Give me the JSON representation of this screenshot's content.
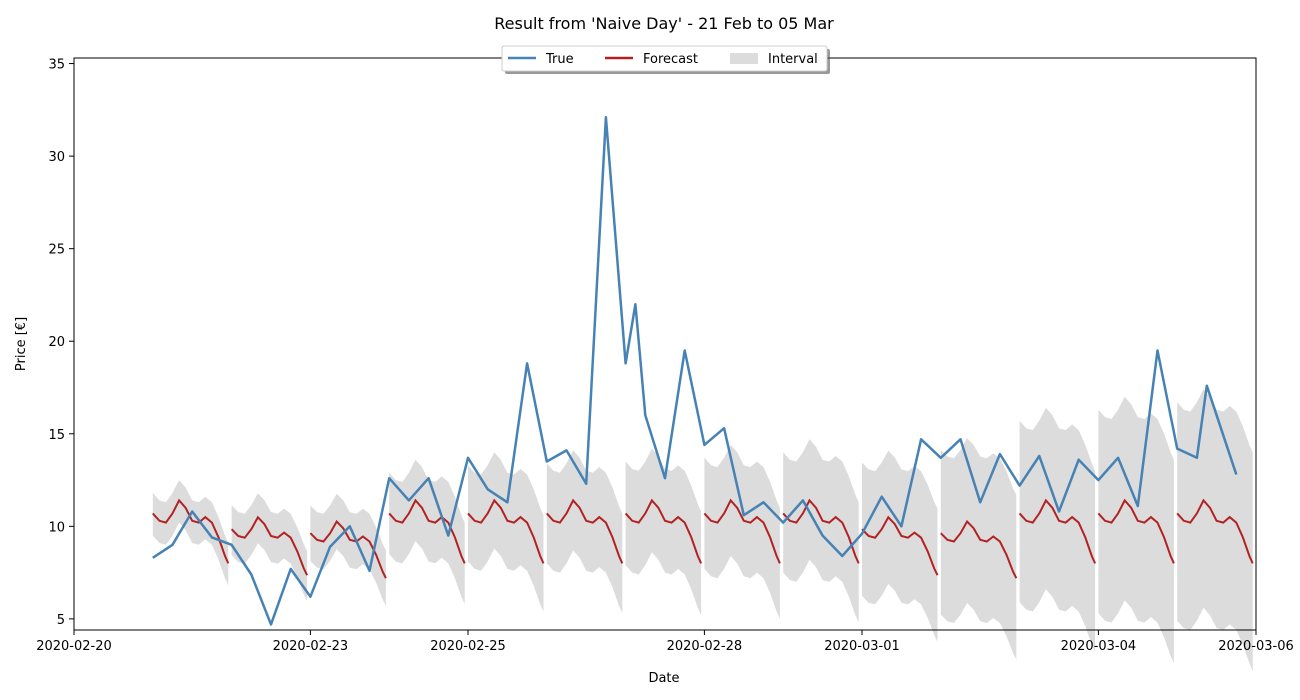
{
  "chart_data": {
    "type": "line",
    "title": "Result from 'Naive Day' - 21 Feb to 05 Mar",
    "xlabel": "Date",
    "ylabel": "Price [€]",
    "xlim": [
      "2020-02-20 00:00",
      "2020-03-06 00:00"
    ],
    "ylim": [
      4.4,
      35.3
    ],
    "x_ticks": [
      "2020-02-20",
      "2020-02-23",
      "2020-02-25",
      "2020-02-28",
      "2020-03-01",
      "2020-03-04",
      "2020-03-06"
    ],
    "y_ticks": [
      5,
      10,
      15,
      20,
      25,
      30,
      35
    ],
    "legend": {
      "placement": "top-center",
      "entries": [
        "True",
        "Forecast",
        "Interval"
      ]
    },
    "colors": {
      "true": "#4682b4",
      "forecast": "#b22222",
      "interval": "#dcdcdc"
    },
    "grid": false,
    "series": [
      {
        "name": "True",
        "points": [
          [
            "2020-02-21 00:00",
            8.3
          ],
          [
            "2020-02-21 06:00",
            9.0
          ],
          [
            "2020-02-21 12:00",
            10.8
          ],
          [
            "2020-02-21 18:00",
            9.4
          ],
          [
            "2020-02-22 00:00",
            9.0
          ],
          [
            "2020-02-22 06:00",
            7.4
          ],
          [
            "2020-02-22 12:00",
            4.7
          ],
          [
            "2020-02-22 18:00",
            7.7
          ],
          [
            "2020-02-23 00:00",
            6.2
          ],
          [
            "2020-02-23 06:00",
            8.9
          ],
          [
            "2020-02-23 12:00",
            10.0
          ],
          [
            "2020-02-23 18:00",
            7.6
          ],
          [
            "2020-02-24 00:00",
            12.6
          ],
          [
            "2020-02-24 06:00",
            11.4
          ],
          [
            "2020-02-24 12:00",
            12.6
          ],
          [
            "2020-02-24 18:00",
            9.5
          ],
          [
            "2020-02-25 00:00",
            13.7
          ],
          [
            "2020-02-25 06:00",
            12.0
          ],
          [
            "2020-02-25 12:00",
            11.3
          ],
          [
            "2020-02-25 18:00",
            18.8
          ],
          [
            "2020-02-26 00:00",
            13.5
          ],
          [
            "2020-02-26 06:00",
            14.1
          ],
          [
            "2020-02-26 12:00",
            12.3
          ],
          [
            "2020-02-26 18:00",
            32.1
          ],
          [
            "2020-02-27 00:00",
            18.8
          ],
          [
            "2020-02-27 03:00",
            22.0
          ],
          [
            "2020-02-27 06:00",
            16.0
          ],
          [
            "2020-02-27 12:00",
            12.6
          ],
          [
            "2020-02-27 18:00",
            19.5
          ],
          [
            "2020-02-28 00:00",
            14.4
          ],
          [
            "2020-02-28 06:00",
            15.3
          ],
          [
            "2020-02-28 12:00",
            10.6
          ],
          [
            "2020-02-28 18:00",
            11.3
          ],
          [
            "2020-02-29 00:00",
            10.2
          ],
          [
            "2020-02-29 06:00",
            11.4
          ],
          [
            "2020-02-29 12:00",
            9.5
          ],
          [
            "2020-02-29 18:00",
            8.4
          ],
          [
            "2020-03-01 00:00",
            9.6
          ],
          [
            "2020-03-01 06:00",
            11.6
          ],
          [
            "2020-03-01 12:00",
            10.0
          ],
          [
            "2020-03-01 18:00",
            14.7
          ],
          [
            "2020-03-02 00:00",
            13.7
          ],
          [
            "2020-03-02 06:00",
            14.7
          ],
          [
            "2020-03-02 12:00",
            11.3
          ],
          [
            "2020-03-02 18:00",
            13.9
          ],
          [
            "2020-03-03 00:00",
            12.2
          ],
          [
            "2020-03-03 06:00",
            13.8
          ],
          [
            "2020-03-03 12:00",
            10.8
          ],
          [
            "2020-03-03 18:00",
            13.6
          ],
          [
            "2020-03-04 00:00",
            12.5
          ],
          [
            "2020-03-04 06:00",
            13.7
          ],
          [
            "2020-03-04 12:00",
            11.1
          ],
          [
            "2020-03-04 18:00",
            19.5
          ],
          [
            "2020-03-05 00:00",
            14.2
          ],
          [
            "2020-03-05 06:00",
            13.7
          ],
          [
            "2020-03-05 09:00",
            17.6
          ],
          [
            "2020-03-05 18:00",
            12.8
          ]
        ]
      },
      {
        "name": "Forecast",
        "daily_profile": {
          "hours": [
            0,
            2,
            4,
            6,
            8,
            10,
            12,
            14,
            16,
            18,
            20,
            22,
            23
          ],
          "values": [
            10.7,
            10.3,
            10.2,
            10.7,
            11.4,
            11.0,
            10.3,
            10.2,
            10.5,
            10.2,
            9.4,
            8.4,
            8.0
          ]
        },
        "first_day": "2020-02-21",
        "days": 14,
        "day_scale": [
          1.0,
          0.92,
          0.9,
          1.0,
          1.0,
          1.0,
          1.0,
          1.0,
          1.0,
          0.92,
          0.9,
          1.0,
          1.0,
          1.0
        ]
      },
      {
        "name": "Interval",
        "lower_offset_by_day": [
          1.2,
          1.4,
          1.5,
          2.2,
          2.6,
          2.7,
          2.8,
          3.0,
          3.2,
          3.6,
          4.4,
          4.8,
          5.4,
          5.8
        ],
        "upper_offset_by_day": [
          1.1,
          1.3,
          1.5,
          2.2,
          2.6,
          2.7,
          2.8,
          3.0,
          3.3,
          3.6,
          4.5,
          5.0,
          5.6,
          6.0
        ]
      }
    ]
  }
}
